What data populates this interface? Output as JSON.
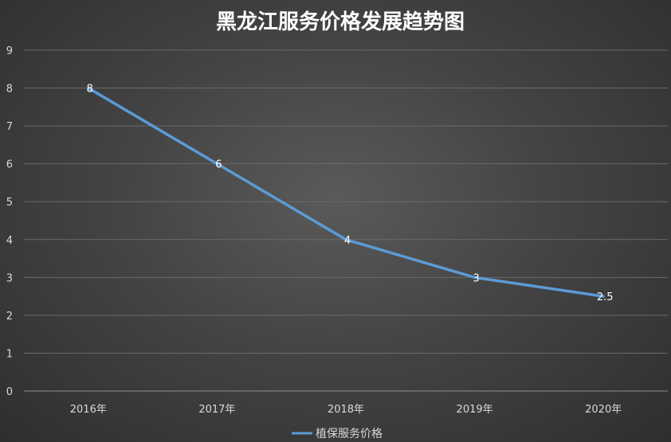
{
  "chart_data": {
    "type": "line",
    "title": "黑龙江服务价格发展趋势图",
    "categories": [
      "2016年",
      "2017年",
      "2018年",
      "2019年",
      "2020年"
    ],
    "series": [
      {
        "name": "植保服务价格",
        "values": [
          8,
          6,
          4,
          3,
          2.5
        ],
        "color": "#5b9bd5"
      }
    ],
    "data_labels": [
      "8",
      "6",
      "4",
      "3",
      "2.5"
    ],
    "ylim": [
      0,
      9
    ],
    "yticks": [
      "0",
      "1",
      "2",
      "3",
      "4",
      "5",
      "6",
      "7",
      "8",
      "9"
    ],
    "grid": true,
    "legend_position": "bottom"
  }
}
